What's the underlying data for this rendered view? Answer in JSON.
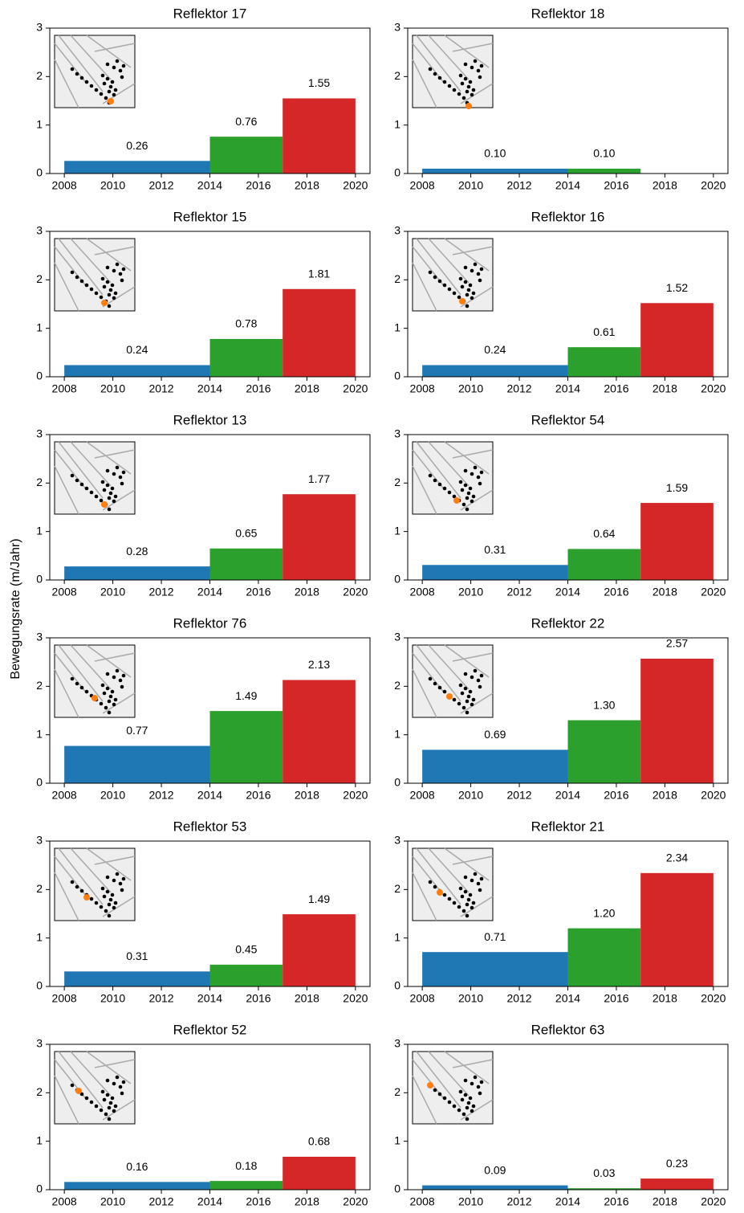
{
  "ylabel": "Bewegungsrate (m/Jahr)",
  "chart_data": [
    {
      "type": "histogram",
      "title": "Reflektor 17",
      "bins": [
        2008,
        2014,
        2017,
        2020
      ],
      "values": [
        0.26,
        0.76,
        1.55
      ],
      "value_labels": [
        "0.26",
        "0.76",
        "1.55"
      ],
      "colors": [
        "#1f77b4",
        "#2ca02c",
        "#d62728"
      ],
      "xlim": [
        2007.4,
        2020.6
      ],
      "ylim": [
        0,
        3
      ],
      "xticks": [
        2008,
        2010,
        2012,
        2014,
        2016,
        2018,
        2020
      ],
      "yticks": [
        0,
        1,
        2,
        3
      ]
    },
    {
      "type": "histogram",
      "title": "Reflektor 18",
      "bins": [
        2008,
        2014,
        2017
      ],
      "values": [
        0.1,
        0.1
      ],
      "value_labels": [
        "0.10",
        "0.10"
      ],
      "colors": [
        "#1f77b4",
        "#2ca02c"
      ],
      "xlim": [
        2007.4,
        2020.6
      ],
      "ylim": [
        0,
        3
      ],
      "xticks": [
        2008,
        2010,
        2012,
        2014,
        2016,
        2018,
        2020
      ],
      "yticks": [
        0,
        1,
        2,
        3
      ]
    },
    {
      "type": "histogram",
      "title": "Reflektor 15",
      "bins": [
        2008,
        2014,
        2017,
        2020
      ],
      "values": [
        0.24,
        0.78,
        1.81
      ],
      "value_labels": [
        "0.24",
        "0.78",
        "1.81"
      ],
      "colors": [
        "#1f77b4",
        "#2ca02c",
        "#d62728"
      ],
      "xlim": [
        2007.4,
        2020.6
      ],
      "ylim": [
        0,
        3
      ],
      "xticks": [
        2008,
        2010,
        2012,
        2014,
        2016,
        2018,
        2020
      ],
      "yticks": [
        0,
        1,
        2,
        3
      ]
    },
    {
      "type": "histogram",
      "title": "Reflektor 16",
      "bins": [
        2008,
        2014,
        2017,
        2020
      ],
      "values": [
        0.24,
        0.61,
        1.52
      ],
      "value_labels": [
        "0.24",
        "0.61",
        "1.52"
      ],
      "colors": [
        "#1f77b4",
        "#2ca02c",
        "#d62728"
      ],
      "xlim": [
        2007.4,
        2020.6
      ],
      "ylim": [
        0,
        3
      ],
      "xticks": [
        2008,
        2010,
        2012,
        2014,
        2016,
        2018,
        2020
      ],
      "yticks": [
        0,
        1,
        2,
        3
      ]
    },
    {
      "type": "histogram",
      "title": "Reflektor 13",
      "bins": [
        2008,
        2014,
        2017,
        2020
      ],
      "values": [
        0.28,
        0.65,
        1.77
      ],
      "value_labels": [
        "0.28",
        "0.65",
        "1.77"
      ],
      "colors": [
        "#1f77b4",
        "#2ca02c",
        "#d62728"
      ],
      "xlim": [
        2007.4,
        2020.6
      ],
      "ylim": [
        0,
        3
      ],
      "xticks": [
        2008,
        2010,
        2012,
        2014,
        2016,
        2018,
        2020
      ],
      "yticks": [
        0,
        1,
        2,
        3
      ]
    },
    {
      "type": "histogram",
      "title": "Reflektor 54",
      "bins": [
        2008,
        2014,
        2017,
        2020
      ],
      "values": [
        0.31,
        0.64,
        1.59
      ],
      "value_labels": [
        "0.31",
        "0.64",
        "1.59"
      ],
      "colors": [
        "#1f77b4",
        "#2ca02c",
        "#d62728"
      ],
      "xlim": [
        2007.4,
        2020.6
      ],
      "ylim": [
        0,
        3
      ],
      "xticks": [
        2008,
        2010,
        2012,
        2014,
        2016,
        2018,
        2020
      ],
      "yticks": [
        0,
        1,
        2,
        3
      ]
    },
    {
      "type": "histogram",
      "title": "Reflektor 76",
      "bins": [
        2008,
        2014,
        2017,
        2020
      ],
      "values": [
        0.77,
        1.49,
        2.13
      ],
      "value_labels": [
        "0.77",
        "1.49",
        "2.13"
      ],
      "colors": [
        "#1f77b4",
        "#2ca02c",
        "#d62728"
      ],
      "xlim": [
        2007.4,
        2020.6
      ],
      "ylim": [
        0,
        3
      ],
      "xticks": [
        2008,
        2010,
        2012,
        2014,
        2016,
        2018,
        2020
      ],
      "yticks": [
        0,
        1,
        2,
        3
      ]
    },
    {
      "type": "histogram",
      "title": "Reflektor 22",
      "bins": [
        2008,
        2014,
        2017,
        2020
      ],
      "values": [
        0.69,
        1.3,
        2.57
      ],
      "value_labels": [
        "0.69",
        "1.30",
        "2.57"
      ],
      "colors": [
        "#1f77b4",
        "#2ca02c",
        "#d62728"
      ],
      "xlim": [
        2007.4,
        2020.6
      ],
      "ylim": [
        0,
        3
      ],
      "xticks": [
        2008,
        2010,
        2012,
        2014,
        2016,
        2018,
        2020
      ],
      "yticks": [
        0,
        1,
        2,
        3
      ]
    },
    {
      "type": "histogram",
      "title": "Reflektor 53",
      "bins": [
        2008,
        2014,
        2017,
        2020
      ],
      "values": [
        0.31,
        0.45,
        1.49
      ],
      "value_labels": [
        "0.31",
        "0.45",
        "1.49"
      ],
      "colors": [
        "#1f77b4",
        "#2ca02c",
        "#d62728"
      ],
      "xlim": [
        2007.4,
        2020.6
      ],
      "ylim": [
        0,
        3
      ],
      "xticks": [
        2008,
        2010,
        2012,
        2014,
        2016,
        2018,
        2020
      ],
      "yticks": [
        0,
        1,
        2,
        3
      ]
    },
    {
      "type": "histogram",
      "title": "Reflektor 21",
      "bins": [
        2008,
        2014,
        2017,
        2020
      ],
      "values": [
        0.71,
        1.2,
        2.34
      ],
      "value_labels": [
        "0.71",
        "1.20",
        "2.34"
      ],
      "colors": [
        "#1f77b4",
        "#2ca02c",
        "#d62728"
      ],
      "xlim": [
        2007.4,
        2020.6
      ],
      "ylim": [
        0,
        3
      ],
      "xticks": [
        2008,
        2010,
        2012,
        2014,
        2016,
        2018,
        2020
      ],
      "yticks": [
        0,
        1,
        2,
        3
      ]
    },
    {
      "type": "histogram",
      "title": "Reflektor 52",
      "bins": [
        2008,
        2014,
        2017,
        2020
      ],
      "values": [
        0.16,
        0.18,
        0.68
      ],
      "value_labels": [
        "0.16",
        "0.18",
        "0.68"
      ],
      "colors": [
        "#1f77b4",
        "#2ca02c",
        "#d62728"
      ],
      "xlim": [
        2007.4,
        2020.6
      ],
      "ylim": [
        0,
        3
      ],
      "xticks": [
        2008,
        2010,
        2012,
        2014,
        2016,
        2018,
        2020
      ],
      "yticks": [
        0,
        1,
        2,
        3
      ]
    },
    {
      "type": "histogram",
      "title": "Reflektor 63",
      "bins": [
        2008,
        2014,
        2017,
        2020
      ],
      "values": [
        0.09,
        0.03,
        0.23
      ],
      "value_labels": [
        "0.09",
        "0.03",
        "0.23"
      ],
      "colors": [
        "#1f77b4",
        "#2ca02c",
        "#d62728"
      ],
      "xlim": [
        2007.4,
        2020.6
      ],
      "ylim": [
        0,
        3
      ],
      "xticks": [
        2008,
        2010,
        2012,
        2014,
        2016,
        2018,
        2020
      ],
      "yticks": [
        0,
        1,
        2,
        3
      ]
    }
  ]
}
